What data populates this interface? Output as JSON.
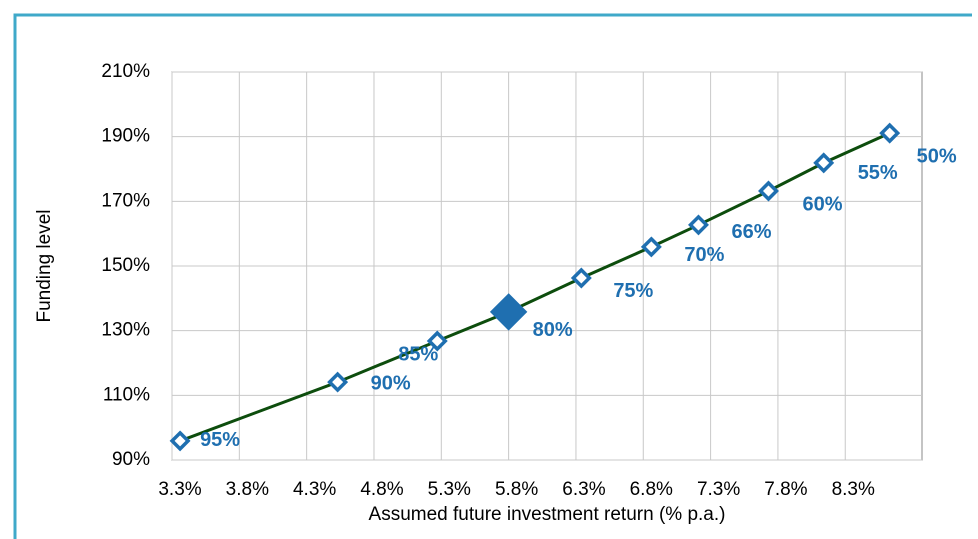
{
  "chart_data": {
    "type": "line",
    "x_label": "Assumed future investment return (% p.a.)",
    "y_label": "Funding level",
    "x": [
      3.36,
      4.53,
      5.27,
      5.8,
      6.34,
      6.86,
      7.21,
      7.73,
      8.14,
      8.63
    ],
    "series": [
      {
        "color": "#1f6fb0",
        "line_color": "#0d4d0d",
        "values": [
          95.9,
          114.1,
          126.8,
          135.8,
          146.3,
          155.9,
          162.7,
          173.2,
          181.9,
          191.1
        ],
        "point_labels": [
          "95%",
          "90%",
          "85%",
          "80%",
          "75%",
          "70%",
          "66%",
          "60%",
          "55%",
          "50%"
        ],
        "highlight": 3
      }
    ],
    "xlim": [
      3.3,
      8.87
    ],
    "xticks": [
      {
        "value": 3.3,
        "label": "3.3%"
      },
      {
        "value": 3.8,
        "label": "3.8%"
      },
      {
        "value": 4.3,
        "label": "4.3%"
      },
      {
        "value": 4.8,
        "label": "4.8%"
      },
      {
        "value": 5.3,
        "label": "5.3%"
      },
      {
        "value": 5.8,
        "label": "5.8%"
      },
      {
        "value": 6.3,
        "label": "6.3%"
      },
      {
        "value": 6.8,
        "label": "6.8%"
      },
      {
        "value": 7.3,
        "label": "7.3%"
      },
      {
        "value": 7.8,
        "label": "7.8%"
      },
      {
        "value": 8.3,
        "label": "8.3%"
      }
    ],
    "ylim": [
      90,
      210
    ],
    "yticks": [
      {
        "value": 90,
        "label": "90%"
      },
      {
        "value": 110,
        "label": "110%"
      },
      {
        "value": 130,
        "label": "130%"
      },
      {
        "value": 150,
        "label": "150%"
      },
      {
        "value": 170,
        "label": "170%"
      },
      {
        "value": 190,
        "label": "190%"
      },
      {
        "value": 210,
        "label": "210%"
      }
    ],
    "grid": true
  }
}
